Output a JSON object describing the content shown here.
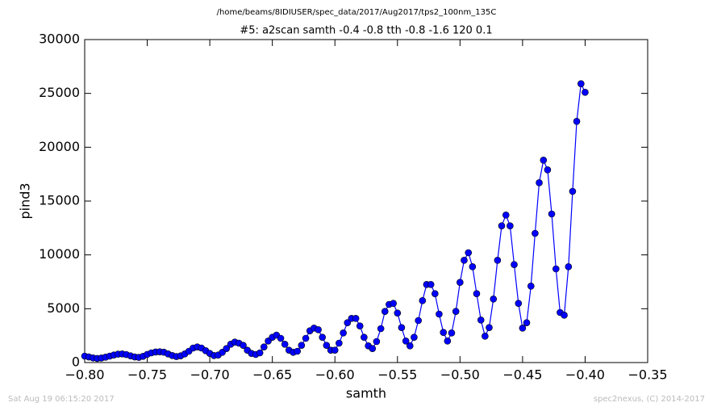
{
  "chart_data": {
    "type": "line",
    "subtitle": "/home/beams/8IDIUSER/spec_data/2017/Aug2017/tps2_100nm_135C",
    "title": "#5: a2scan  samth -0.4 -0.8  tth -0.8 -1.6  120 0.1",
    "x_label": "samth",
    "y_label": "pind3",
    "timestamp": "Sat Aug 19 06:15:20 2017",
    "credit": "spec2nexus, (C) 2014-2017",
    "x": [
      -0.8,
      -0.7967,
      -0.7933,
      -0.79,
      -0.7867,
      -0.7833,
      -0.78,
      -0.7767,
      -0.7733,
      -0.77,
      -0.7667,
      -0.7633,
      -0.76,
      -0.7567,
      -0.7533,
      -0.75,
      -0.7467,
      -0.7433,
      -0.74,
      -0.7367,
      -0.7333,
      -0.73,
      -0.7267,
      -0.7233,
      -0.72,
      -0.7167,
      -0.7133,
      -0.71,
      -0.7067,
      -0.7033,
      -0.7,
      -0.6967,
      -0.6933,
      -0.69,
      -0.6867,
      -0.6833,
      -0.68,
      -0.6767,
      -0.6733,
      -0.67,
      -0.6667,
      -0.6633,
      -0.66,
      -0.6567,
      -0.6533,
      -0.65,
      -0.6467,
      -0.6433,
      -0.64,
      -0.6367,
      -0.6333,
      -0.63,
      -0.6267,
      -0.6233,
      -0.62,
      -0.6167,
      -0.6133,
      -0.61,
      -0.6067,
      -0.6033,
      -0.6,
      -0.5967,
      -0.5933,
      -0.59,
      -0.5867,
      -0.5833,
      -0.58,
      -0.5767,
      -0.5733,
      -0.57,
      -0.5667,
      -0.5633,
      -0.56,
      -0.5567,
      -0.5533,
      -0.55,
      -0.5467,
      -0.5433,
      -0.54,
      -0.5367,
      -0.5333,
      -0.53,
      -0.5267,
      -0.5233,
      -0.52,
      -0.5167,
      -0.5133,
      -0.51,
      -0.5067,
      -0.5033,
      -0.5,
      -0.4967,
      -0.4933,
      -0.49,
      -0.4867,
      -0.4833,
      -0.48,
      -0.4767,
      -0.4733,
      -0.47,
      -0.4667,
      -0.4633,
      -0.46,
      -0.4567,
      -0.4533,
      -0.45,
      -0.4467,
      -0.4433,
      -0.44,
      -0.4367,
      -0.4333,
      -0.43,
      -0.4267,
      -0.4233,
      -0.42,
      -0.4167,
      -0.4133,
      -0.41,
      -0.4067,
      -0.4033,
      -0.4
    ],
    "series": [
      {
        "color": "#0000ff",
        "values": [
          600,
          520,
          430,
          380,
          420,
          500,
          600,
          700,
          780,
          800,
          740,
          620,
          520,
          480,
          580,
          760,
          900,
          980,
          1000,
          960,
          800,
          650,
          560,
          620,
          800,
          1050,
          1350,
          1450,
          1350,
          1100,
          850,
          650,
          700,
          950,
          1300,
          1700,
          1900,
          1800,
          1600,
          1150,
          850,
          750,
          900,
          1450,
          2000,
          2350,
          2550,
          2250,
          1700,
          1150,
          950,
          1050,
          1600,
          2250,
          2950,
          3200,
          3050,
          2350,
          1600,
          1150,
          1150,
          1800,
          2750,
          3700,
          4100,
          4100,
          3400,
          2350,
          1550,
          1300,
          1950,
          3150,
          4750,
          5400,
          5500,
          4600,
          3250,
          2000,
          1550,
          2350,
          3900,
          5750,
          7250,
          7250,
          6400,
          4500,
          2800,
          2000,
          2750,
          4750,
          7450,
          9500,
          10200,
          8900,
          6400,
          3950,
          2450,
          3250,
          5900,
          9500,
          12700,
          13700,
          12700,
          9100,
          5500,
          3200,
          3700,
          7100,
          12000,
          16700,
          18800,
          17900,
          13800,
          8700,
          4650,
          4400,
          8900,
          15900,
          22400,
          25900,
          25100
        ]
      }
    ],
    "xlim": [
      -0.8,
      -0.35
    ],
    "xticks": [
      {
        "value": -0.8,
        "label": "−0.80"
      },
      {
        "value": -0.75,
        "label": "−0.75"
      },
      {
        "value": -0.7,
        "label": "−0.70"
      },
      {
        "value": -0.65,
        "label": "−0.65"
      },
      {
        "value": -0.6,
        "label": "−0.60"
      },
      {
        "value": -0.55,
        "label": "−0.55"
      },
      {
        "value": -0.5,
        "label": "−0.50"
      },
      {
        "value": -0.45,
        "label": "−0.45"
      },
      {
        "value": -0.4,
        "label": "−0.40"
      },
      {
        "value": -0.35,
        "label": "−0.35"
      }
    ],
    "ylim": [
      0,
      30000
    ],
    "yticks": [
      0,
      5000,
      10000,
      15000,
      20000,
      25000,
      30000
    ],
    "grid": false,
    "markers": true
  }
}
